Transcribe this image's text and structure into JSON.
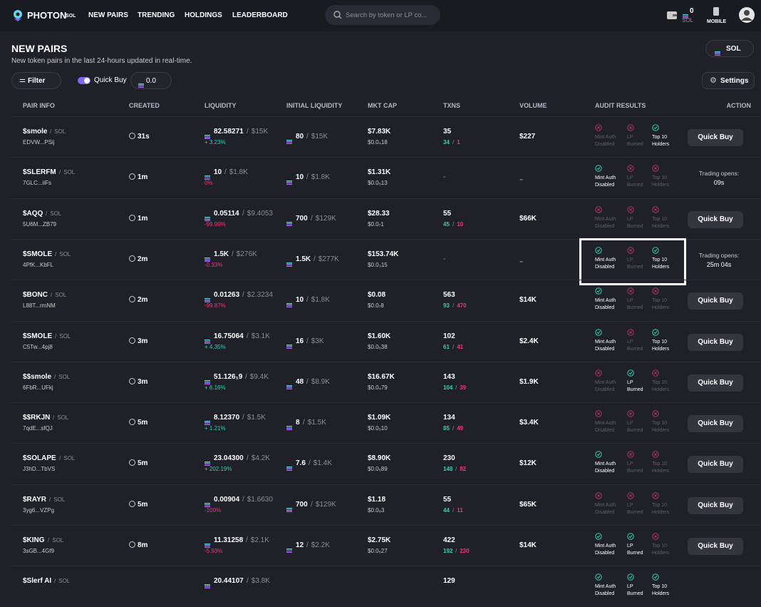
{
  "header": {
    "logo": "PHOTON",
    "logo_sub": "SOL",
    "nav": [
      "NEW PAIRS",
      "TRENDING",
      "HOLDINGS",
      "LEADERBOARD"
    ],
    "search_placeholder": "Search by token or LP co...",
    "wallet_balance": "0",
    "wallet_unit": "SOL",
    "mobile": "MOBILE"
  },
  "page": {
    "title": "NEW PAIRS",
    "subtitle": "New token pairs in the last 24-hours updated in real-time.",
    "chain": "SOL",
    "filter": "Filter",
    "quick_buy_label": "Quick Buy",
    "quick_buy_amount": "0.0",
    "settings": "Settings"
  },
  "table": {
    "columns": [
      "PAIR INFO",
      "CREATED",
      "LIQUIDITY",
      "INITIAL LIQUIDITY",
      "MKT CAP",
      "TXNS",
      "VOLUME",
      "AUDIT RESULTS",
      "ACTION"
    ],
    "audit_labels": [
      [
        "Mint Auth",
        "Disabled"
      ],
      [
        "LP",
        "Burned"
      ],
      [
        "Top 10",
        "Holders"
      ]
    ],
    "rows": [
      {
        "name": "$smole",
        "chain": "SOL",
        "address": "EDVW...PSij",
        "age": "31s",
        "liquidity": "82.58271",
        "liquidity_usd": "$15K",
        "liquidity_change": "+ 3.23%",
        "initial_liquidity": "80",
        "initial_liquidity_usd": "$15K",
        "mkt_cap": "$7.83K",
        "price": "$0.0₄18",
        "txns": "35",
        "buys": "34",
        "sells": "1",
        "volume": "$227",
        "audit": [
          false,
          false,
          true
        ],
        "action": {
          "label": "Quick Buy"
        }
      },
      {
        "name": "$SLERFM",
        "chain": "SOL",
        "address": "7GLC...iiFs",
        "age": "1m",
        "liquidity": "10",
        "liquidity_usd": "$1.8K",
        "liquidity_change": "0%",
        "initial_liquidity": "10",
        "initial_liquidity_usd": "$1.8K",
        "mkt_cap": "$1.31K",
        "price": "$0.0₅13",
        "txns": "-",
        "volume": "-",
        "audit": [
          true,
          false,
          false
        ],
        "action": {
          "label": "Trading opens:",
          "time": "09s"
        }
      },
      {
        "name": "$AQQ",
        "chain": "SOL",
        "address": "5U6M...ZB79",
        "age": "1m",
        "liquidity": "0.05114",
        "liquidity_usd": "$9.4053",
        "liquidity_change": "-99.99%",
        "initial_liquidity": "700",
        "initial_liquidity_usd": "$129K",
        "mkt_cap": "$28.33",
        "price": "$0.0₇1",
        "txns": "55",
        "buys": "45",
        "sells": "10",
        "volume": "$66K",
        "audit": [
          false,
          false,
          false
        ],
        "action": {
          "label": "Quick Buy"
        }
      },
      {
        "name": "$SMOLE",
        "chain": "SOL",
        "address": "4PfK...KbFL",
        "age": "2m",
        "liquidity": "1.5K",
        "liquidity_usd": "$276K",
        "liquidity_change": "-0.33%",
        "initial_liquidity": "1.5K",
        "initial_liquidity_usd": "$277K",
        "mkt_cap": "$153.74K",
        "price": "$0.0₃15",
        "txns": "-",
        "volume": "-",
        "audit": [
          true,
          false,
          true
        ],
        "highlight": true,
        "action": {
          "label": "Trading opens:",
          "time": "25m 04s"
        }
      },
      {
        "name": "$BONC",
        "chain": "SOL",
        "address": "L88T...rmNM",
        "age": "2m",
        "liquidity": "0.01263",
        "liquidity_usd": "$2.3234",
        "liquidity_change": "-99.87%",
        "initial_liquidity": "10",
        "initial_liquidity_usd": "$1.8K",
        "mkt_cap": "$0.08",
        "price": "$0.0₇8",
        "txns": "563",
        "buys": "93",
        "sells": "470",
        "volume": "$14K",
        "audit": [
          true,
          false,
          false
        ],
        "action": {
          "label": "Quick Buy"
        }
      },
      {
        "name": "$SMOLE",
        "chain": "SOL",
        "address": "C5Tw...4pj8",
        "age": "3m",
        "liquidity": "16.75064",
        "liquidity_usd": "$3.1K",
        "liquidity_change": "+ 4.35%",
        "initial_liquidity": "16",
        "initial_liquidity_usd": "$3K",
        "mkt_cap": "$1.60K",
        "price": "$0.0₅38",
        "txns": "102",
        "buys": "61",
        "sells": "41",
        "volume": "$2.4K",
        "audit": [
          true,
          false,
          true
        ],
        "action": {
          "label": "Quick Buy"
        }
      },
      {
        "name": "$$smole",
        "chain": "SOL",
        "address": "6FbR...UFkj",
        "age": "3m",
        "liquidity": "51.126₁9",
        "liquidity_usd": "$9.4K",
        "liquidity_change": "+ 6.16%",
        "initial_liquidity": "48",
        "initial_liquidity_usd": "$8.9K",
        "mkt_cap": "$16.67K",
        "price": "$0.0₄79",
        "txns": "143",
        "buys": "104",
        "sells": "39",
        "volume": "$1.9K",
        "audit": [
          false,
          true,
          false
        ],
        "action": {
          "label": "Quick Buy"
        }
      },
      {
        "name": "$$RKJN",
        "chain": "SOL",
        "address": "7qdE...sfQJ",
        "age": "5m",
        "liquidity": "8.12370",
        "liquidity_usd": "$1.5K",
        "liquidity_change": "+ 1.21%",
        "initial_liquidity": "8",
        "initial_liquidity_usd": "$1.5K",
        "mkt_cap": "$1.09K",
        "price": "$0.0₅10",
        "txns": "134",
        "buys": "85",
        "sells": "49",
        "volume": "$3.4K",
        "audit": [
          false,
          false,
          false
        ],
        "action": {
          "label": "Quick Buy"
        }
      },
      {
        "name": "$SOLAPE",
        "chain": "SOL",
        "address": "J3hD...TbVS",
        "age": "5m",
        "liquidity": "23.04300",
        "liquidity_usd": "$4.2K",
        "liquidity_change": "+ 202.19%",
        "initial_liquidity": "7.6",
        "initial_liquidity_usd": "$1.4K",
        "mkt_cap": "$8.90K",
        "price": "$0.0₅89",
        "txns": "230",
        "buys": "148",
        "sells": "82",
        "volume": "$12K",
        "audit": [
          true,
          false,
          false
        ],
        "action": {
          "label": "Quick Buy"
        }
      },
      {
        "name": "$RAYR",
        "chain": "SOL",
        "address": "3yg6...VZPg",
        "age": "5m",
        "liquidity": "0.00904",
        "liquidity_usd": "$1.6630",
        "liquidity_change": "-100%",
        "initial_liquidity": "700",
        "initial_liquidity_usd": "$129K",
        "mkt_cap": "$1.18",
        "price": "$0.0₈3",
        "txns": "55",
        "buys": "44",
        "sells": "11",
        "volume": "$65K",
        "audit": [
          false,
          false,
          false
        ],
        "action": {
          "label": "Quick Buy"
        }
      },
      {
        "name": "$KING",
        "chain": "SOL",
        "address": "3sGB...4Gf9",
        "age": "8m",
        "liquidity": "11.31258",
        "liquidity_usd": "$2.1K",
        "liquidity_change": "-5.93%",
        "initial_liquidity": "12",
        "initial_liquidity_usd": "$2.2K",
        "mkt_cap": "$2.75K",
        "price": "$0.0₅27",
        "txns": "422",
        "buys": "192",
        "sells": "230",
        "volume": "$14K",
        "audit": [
          true,
          true,
          false
        ],
        "action": {
          "label": "Quick Buy"
        }
      },
      {
        "name": "$Slerf AI",
        "chain": "SOL",
        "liquidity": "20.44107",
        "liquidity_usd": "$3.8K",
        "txns": "129",
        "audit": [
          true,
          true,
          true
        ]
      }
    ]
  }
}
